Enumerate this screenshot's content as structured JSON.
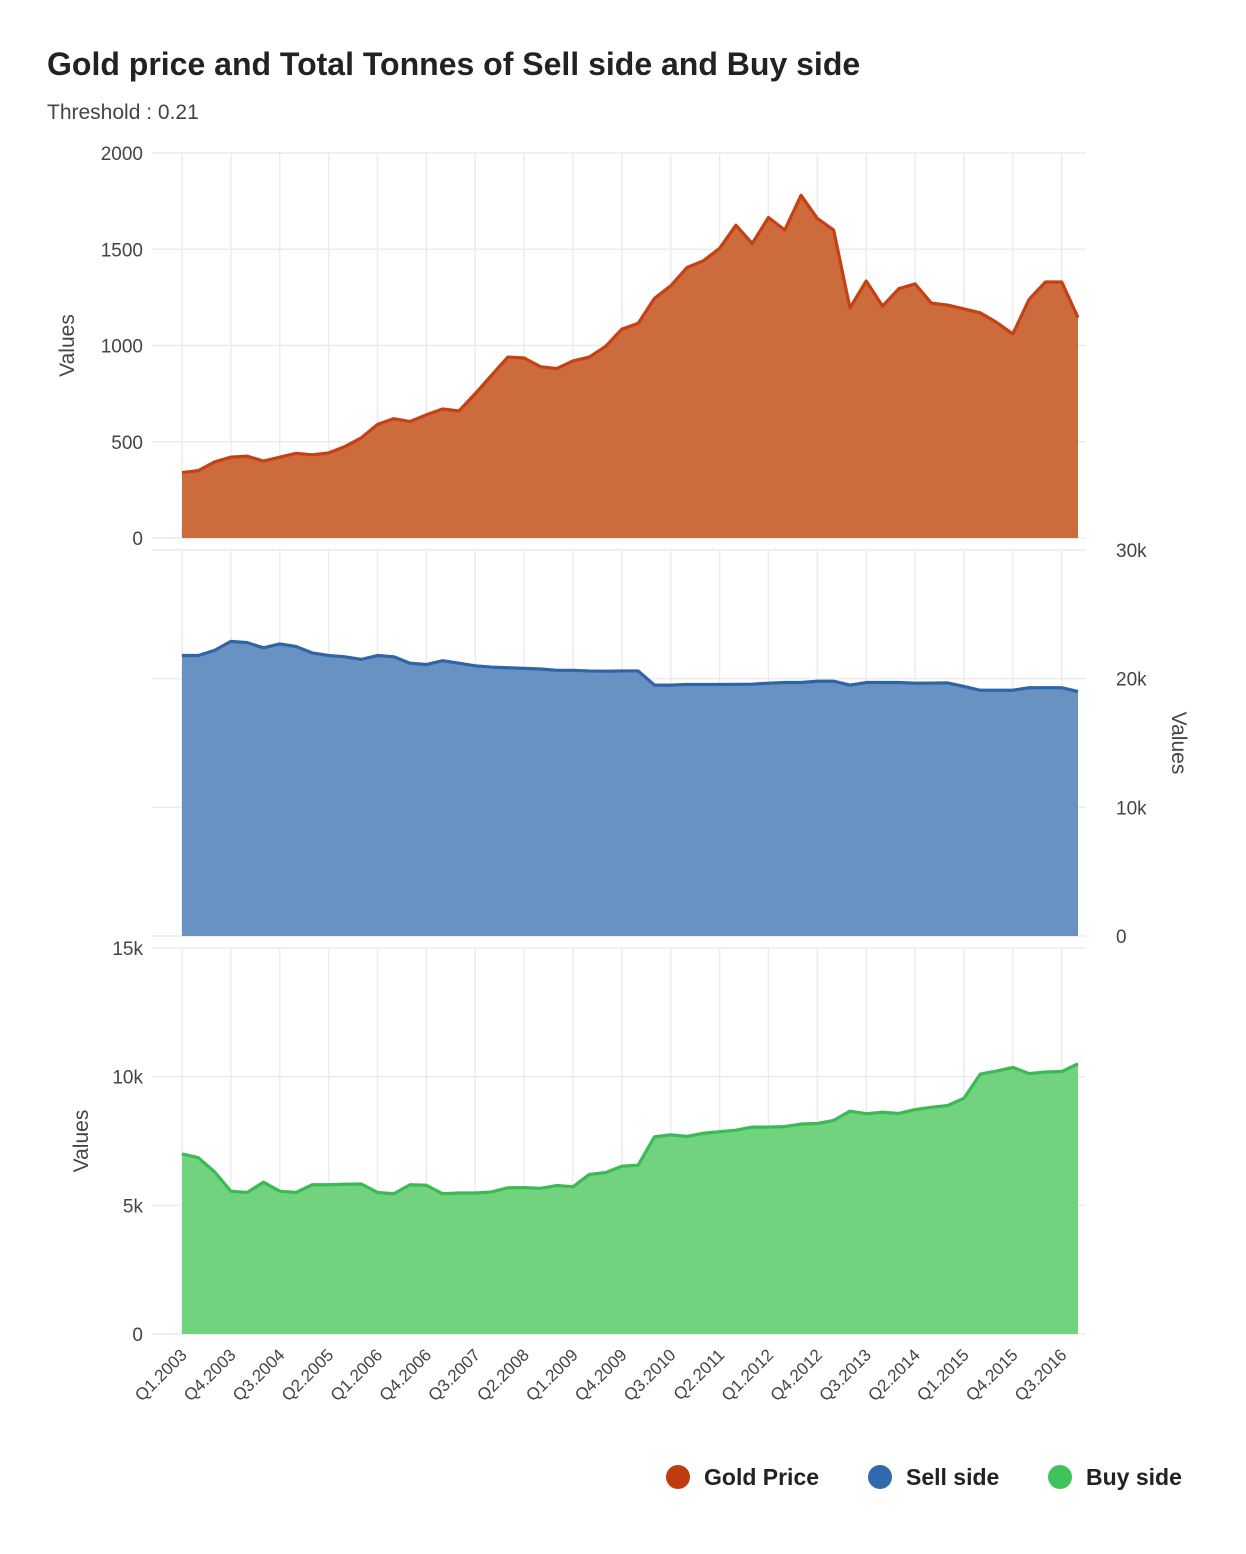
{
  "chart_data": {
    "type": "area",
    "title": "Gold price and Total Tonnes of Sell side and Buy side",
    "subtitle": "Threshold : 0.21",
    "x": [
      "Q1.2003",
      "Q2.2003",
      "Q3.2003",
      "Q4.2003",
      "Q1.2004",
      "Q2.2004",
      "Q3.2004",
      "Q4.2004",
      "Q1.2005",
      "Q2.2005",
      "Q3.2005",
      "Q4.2005",
      "Q1.2006",
      "Q2.2006",
      "Q3.2006",
      "Q4.2006",
      "Q1.2007",
      "Q2.2007",
      "Q3.2007",
      "Q4.2007",
      "Q1.2008",
      "Q2.2008",
      "Q3.2008",
      "Q4.2008",
      "Q1.2009",
      "Q2.2009",
      "Q3.2009",
      "Q4.2009",
      "Q1.2010",
      "Q2.2010",
      "Q3.2010",
      "Q4.2010",
      "Q1.2011",
      "Q2.2011",
      "Q3.2011",
      "Q4.2011",
      "Q1.2012",
      "Q2.2012",
      "Q3.2012",
      "Q4.2012",
      "Q1.2013",
      "Q2.2013",
      "Q3.2013",
      "Q4.2013",
      "Q1.2014",
      "Q2.2014",
      "Q3.2014",
      "Q4.2014",
      "Q1.2015",
      "Q2.2015",
      "Q3.2015",
      "Q4.2015",
      "Q1.2016",
      "Q2.2016",
      "Q3.2016",
      "Q4.2016"
    ],
    "x_tick_labels": [
      "Q1.2003",
      "Q4.2003",
      "Q3.2004",
      "Q2.2005",
      "Q1.2006",
      "Q4.2006",
      "Q3.2007",
      "Q2.2008",
      "Q1.2009",
      "Q4.2009",
      "Q3.2010",
      "Q2.2011",
      "Q1.2012",
      "Q4.2012",
      "Q3.2013",
      "Q2.2014",
      "Q1.2015",
      "Q4.2015",
      "Q3.2016"
    ],
    "panels": [
      {
        "series_name": "Gold Price",
        "ylabel": "Values",
        "axis_side": "left",
        "ylim": [
          0,
          2000
        ],
        "y_ticks": [
          0,
          500,
          1000,
          1500,
          2000
        ],
        "y_tick_labels": [
          "0",
          "500",
          "1000",
          "1500",
          "2000"
        ],
        "values": [
          340,
          350,
          395,
          420,
          425,
          400,
          420,
          440,
          432,
          442,
          475,
          520,
          590,
          620,
          605,
          640,
          670,
          660,
          750,
          845,
          940,
          935,
          890,
          880,
          920,
          940,
          995,
          1085,
          1115,
          1245,
          1310,
          1405,
          1440,
          1505,
          1625,
          1530,
          1665,
          1600,
          1780,
          1660,
          1600,
          1195,
          1335,
          1205,
          1295,
          1320,
          1220,
          1210,
          1190,
          1170,
          1120,
          1060,
          1240,
          1330,
          1330,
          1145
        ],
        "color": "#c74014",
        "fill": "#cc6b3c"
      },
      {
        "series_name": "Sell side",
        "ylabel": "Values",
        "axis_side": "right",
        "ylim": [
          0,
          30000
        ],
        "y_ticks": [
          0,
          10000,
          20000,
          30000
        ],
        "y_tick_labels": [
          "0",
          "10k",
          "20k",
          "30k"
        ],
        "values": [
          21800,
          21800,
          22200,
          22900,
          22800,
          22400,
          22700,
          22500,
          22000,
          21800,
          21700,
          21500,
          21800,
          21700,
          21200,
          21100,
          21400,
          21200,
          21000,
          20900,
          20850,
          20800,
          20750,
          20650,
          20650,
          20600,
          20580,
          20600,
          20600,
          19500,
          19500,
          19550,
          19550,
          19550,
          19560,
          19570,
          19650,
          19700,
          19700,
          19800,
          19800,
          19500,
          19700,
          19700,
          19700,
          19650,
          19660,
          19670,
          19400,
          19100,
          19100,
          19100,
          19300,
          19300,
          19300,
          19000
        ],
        "color": "#2f65a6",
        "fill": "#6792c2"
      },
      {
        "series_name": "Buy side",
        "ylabel": "Values",
        "axis_side": "left",
        "ylim": [
          0,
          15000
        ],
        "y_ticks": [
          0,
          5000,
          10000,
          15000
        ],
        "y_tick_labels": [
          "0",
          "5k",
          "10k",
          "15k"
        ],
        "values": [
          7000,
          6850,
          6300,
          5550,
          5500,
          5900,
          5550,
          5500,
          5800,
          5800,
          5820,
          5830,
          5500,
          5450,
          5800,
          5780,
          5450,
          5480,
          5480,
          5520,
          5680,
          5690,
          5660,
          5770,
          5720,
          6200,
          6270,
          6520,
          6560,
          7660,
          7740,
          7680,
          7800,
          7860,
          7920,
          8040,
          8040,
          8060,
          8160,
          8180,
          8300,
          8660,
          8560,
          8620,
          8570,
          8720,
          8810,
          8880,
          9160,
          10100,
          10220,
          10360,
          10120,
          10180,
          10200,
          10500
        ],
        "color": "#3bba53",
        "fill": "#72d37f"
      }
    ],
    "legend": {
      "placement": "bottom-right",
      "entries": [
        {
          "label": "Gold Price",
          "color": "#c03b0d"
        },
        {
          "label": "Sell side",
          "color": "#2f6aad"
        },
        {
          "label": "Buy side",
          "color": "#3fc258"
        }
      ]
    },
    "grid": true
  }
}
